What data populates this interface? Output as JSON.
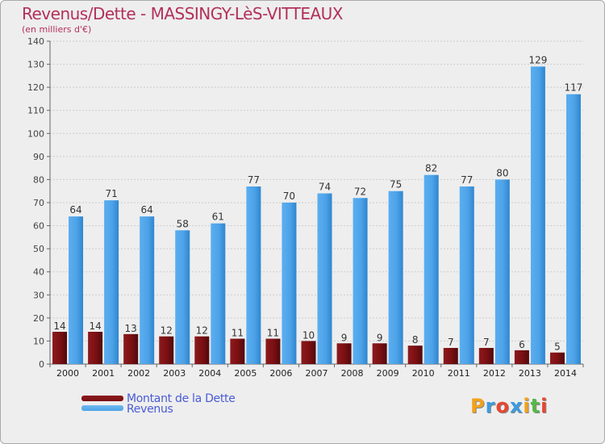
{
  "title": "Revenus/Dette - MASSINGY-LèS-VITTEAUX",
  "subtitle": "(en milliers d'€)",
  "logo": {
    "letters": [
      "P",
      "r",
      "o",
      "x",
      "i",
      "t",
      "i"
    ],
    "colors": [
      "#f2a21b",
      "#3b9be0",
      "#e7462f",
      "#3b9be0",
      "#f2a21b",
      "#56b847",
      "#e7462f"
    ]
  },
  "chart_data": {
    "type": "bar",
    "categories": [
      "2000",
      "2001",
      "2002",
      "2003",
      "2004",
      "2005",
      "2006",
      "2007",
      "2008",
      "2009",
      "2010",
      "2011",
      "2012",
      "2013",
      "2014"
    ],
    "series": [
      {
        "name": "Montant de la Dette",
        "color": "#7a0f12",
        "values": [
          14,
          14,
          13,
          12,
          12,
          11,
          11,
          10,
          9,
          9,
          8,
          7,
          7,
          6,
          5
        ]
      },
      {
        "name": "Revenus",
        "color": "#4ea3e8",
        "values": [
          64,
          71,
          64,
          58,
          61,
          77,
          70,
          74,
          72,
          75,
          82,
          77,
          80,
          129,
          117
        ]
      }
    ],
    "ylim": [
      0,
      140
    ],
    "yticks": [
      0,
      10,
      20,
      30,
      40,
      50,
      60,
      70,
      80,
      90,
      100,
      110,
      120,
      130,
      140
    ],
    "grid": true,
    "legend_position": "bottom-left"
  }
}
